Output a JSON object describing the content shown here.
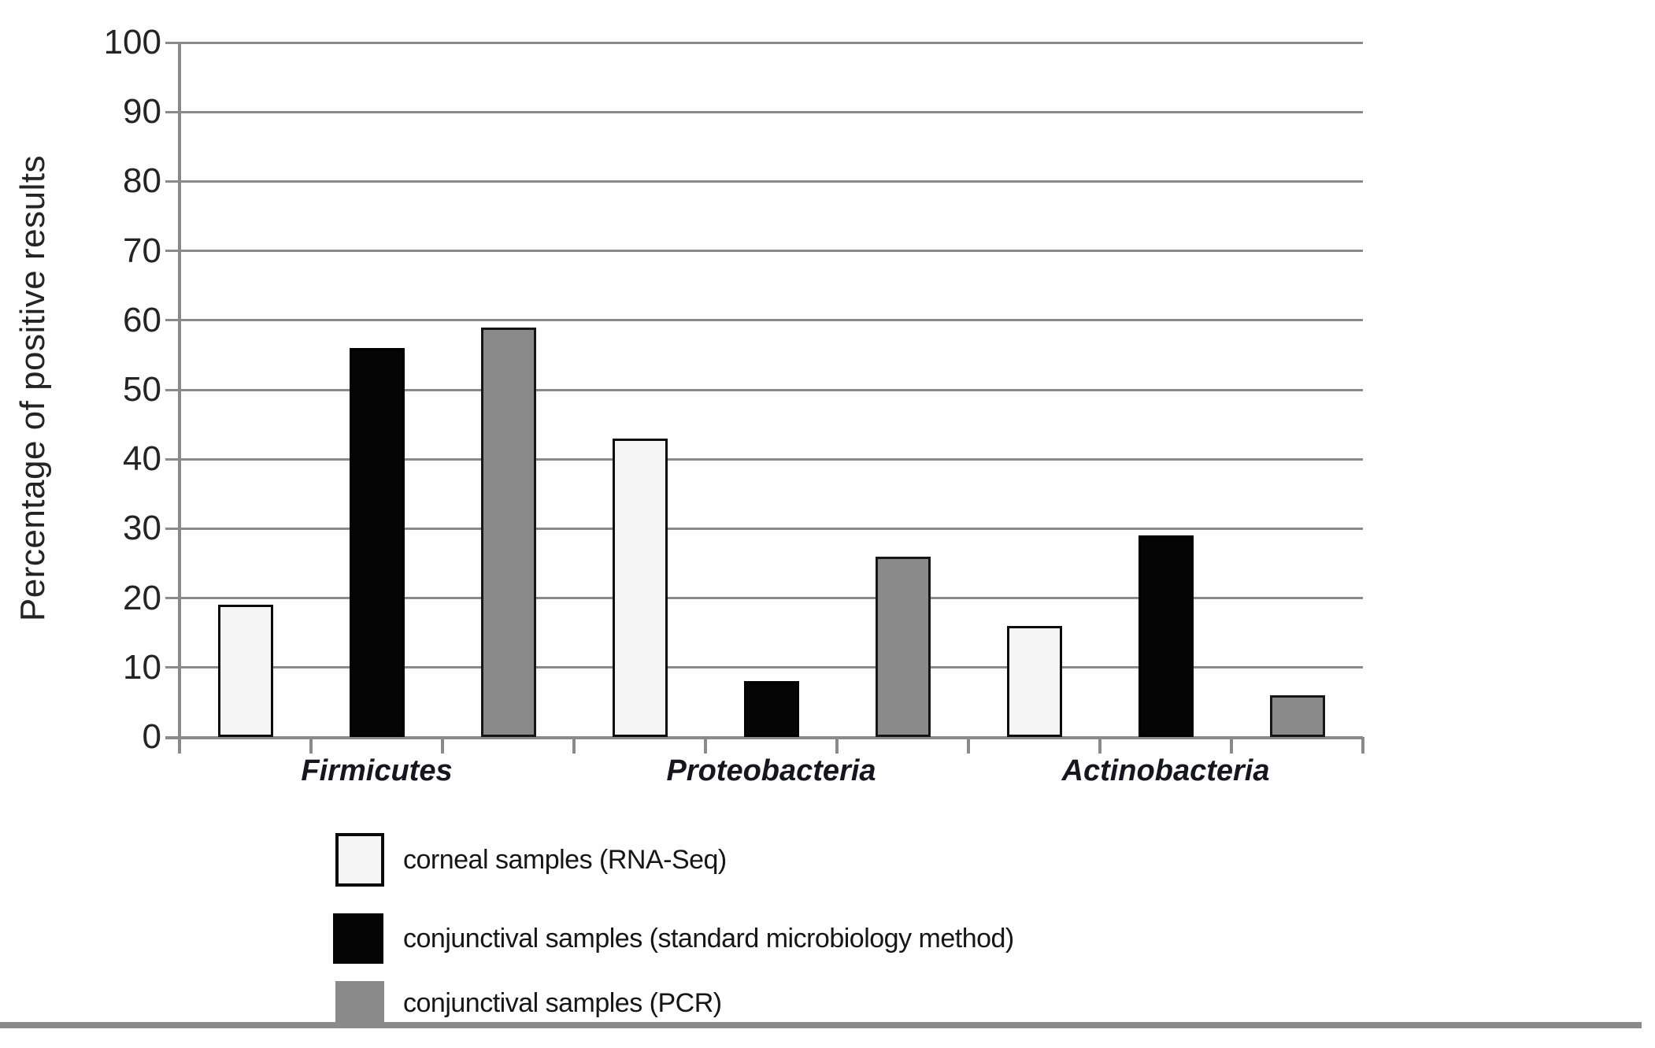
{
  "chart_data": {
    "type": "bar",
    "title": "",
    "ylabel": "Percentage of positive results",
    "xlabel": "",
    "ylim": [
      0,
      100
    ],
    "yticks": [
      0,
      10,
      20,
      30,
      40,
      50,
      60,
      70,
      80,
      90,
      100
    ],
    "grid": true,
    "legend_position": "bottom-left",
    "categories": [
      "Firmicutes",
      "Proteobacteria",
      "Actinobacteria"
    ],
    "series": [
      {
        "name": "corneal samples (RNA-Seq)",
        "swatch": "white",
        "color": "#f5f5f5",
        "values": [
          19,
          43,
          16
        ]
      },
      {
        "name": "conjunctival samples (standard microbiology method)",
        "swatch": "black",
        "color": "#050505",
        "values": [
          56,
          8,
          29
        ]
      },
      {
        "name": "conjunctival samples (PCR)",
        "swatch": "gray",
        "color": "#8a8a8a",
        "values": [
          59,
          26,
          6
        ]
      }
    ]
  },
  "colors": {
    "background": "#fefefe",
    "grid": "#8a8a8a",
    "axis": "#8a8a8a",
    "bar_border": "#0a0a0a",
    "text": "#1f1f1f",
    "separator": "#8a8a8a"
  }
}
